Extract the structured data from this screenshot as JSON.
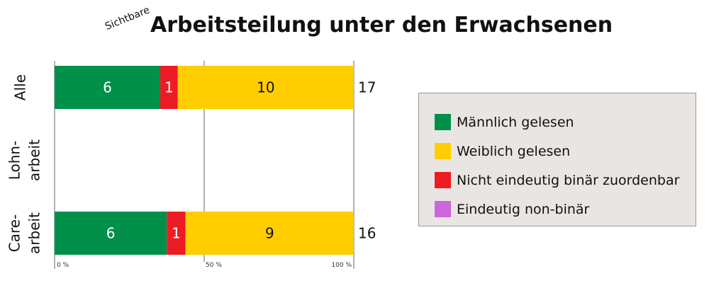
{
  "chart_data": {
    "type": "bar",
    "orientation": "horizontal",
    "stacked": "percent",
    "title_prefix": "Sichtbare",
    "title": "Arbeitsteilung unter den Erwachsenen",
    "categories": [
      "Alle",
      "Lohn-\narbeit",
      "Care-\narbeit"
    ],
    "series": [
      {
        "name": "Männlich gelesen",
        "color": "#00904a",
        "values": [
          6,
          null,
          6
        ]
      },
      {
        "name": "Nicht eindeutig binär zuordenbar",
        "color": "#ed1c24",
        "values": [
          1,
          null,
          1
        ]
      },
      {
        "name": "Weiblich gelesen",
        "color": "#ffcd00",
        "values": [
          10,
          null,
          9
        ]
      },
      {
        "name": "Eindeutig non-binär",
        "color": "#cc66dd",
        "values": [
          0,
          null,
          0
        ]
      }
    ],
    "totals": [
      "17",
      "",
      "16"
    ],
    "xticks": [
      "0 %",
      "50 %",
      "100 %"
    ],
    "xlim": [
      0,
      100
    ],
    "grid": true,
    "legend_position": "right",
    "legend_order": [
      "Männlich gelesen",
      "Weiblich gelesen",
      "Nicht eindeutig binär zuordenbar",
      "Eindeutig non-binär"
    ]
  }
}
